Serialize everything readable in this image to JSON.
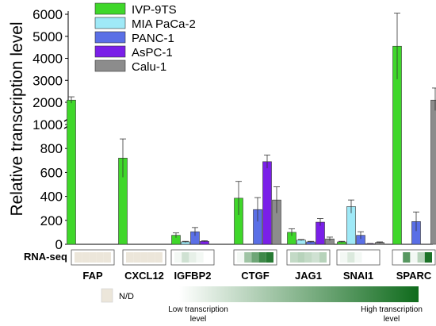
{
  "chart_data": {
    "type": "bar",
    "ylabel": "Relative transcription level",
    "axis_break": {
      "lower": [
        0,
        1000
      ],
      "upper": [
        1000,
        6000
      ]
    },
    "lower_ticks": [
      0,
      200,
      400,
      600,
      800,
      1000
    ],
    "upper_ticks": [
      2000,
      3000,
      4000,
      5000,
      6000
    ],
    "categories": [
      "FAP",
      "CXCL12",
      "IGFBP2",
      "CTGF",
      "JAG1",
      "SNAI1",
      "SPARC"
    ],
    "series": [
      {
        "name": "IVP-9TS",
        "color": "#3fd72a",
        "values": [
          2100,
          720,
          75,
          385,
          100,
          20,
          4550
        ],
        "errors": [
          150,
          160,
          20,
          140,
          30,
          5,
          1500
        ]
      },
      {
        "name": "MIA PaCa-2",
        "color": "#9fe9f7",
        "values": [
          0,
          0,
          20,
          0,
          35,
          315,
          0
        ],
        "errors": [
          0,
          0,
          5,
          0,
          5,
          55,
          0
        ]
      },
      {
        "name": "PANC-1",
        "color": "#5a6fe6",
        "values": [
          0,
          0,
          105,
          290,
          20,
          75,
          190
        ],
        "errors": [
          0,
          0,
          35,
          100,
          5,
          30,
          80
        ]
      },
      {
        "name": "AsPC-1",
        "color": "#7a1fe8",
        "values": [
          0,
          0,
          25,
          690,
          185,
          5,
          0
        ],
        "errors": [
          0,
          0,
          5,
          55,
          30,
          2,
          0
        ]
      },
      {
        "name": "Calu-1",
        "color": "#8c8c8c",
        "values": [
          0,
          0,
          0,
          370,
          45,
          15,
          2100
        ],
        "errors": [
          0,
          0,
          0,
          110,
          15,
          5,
          550
        ]
      }
    ],
    "rnaseq": {
      "label": "RNA-seq",
      "rows": [
        {
          "gene": "FAP",
          "levels": [
            -1,
            -1,
            -1,
            -1,
            -1
          ]
        },
        {
          "gene": "CXCL12",
          "levels": [
            -1,
            -1,
            -1,
            -1,
            -1
          ]
        },
        {
          "gene": "IGFBP2",
          "levels": [
            0.05,
            0.2,
            0.1,
            0.05,
            0.0
          ]
        },
        {
          "gene": "CTGF",
          "levels": [
            0.05,
            0.4,
            0.6,
            0.8,
            0.9
          ]
        },
        {
          "gene": "JAG1",
          "levels": [
            0.25,
            0.3,
            0.25,
            0.2,
            0.3
          ]
        },
        {
          "gene": "SNAI1",
          "levels": [
            0.05,
            0.15,
            0.05,
            0.0,
            0.0
          ]
        },
        {
          "gene": "SPARC",
          "levels": [
            0.0,
            0.7,
            0.05,
            0.3,
            0.95
          ]
        }
      ]
    },
    "key": {
      "nd_label": "N/D",
      "low_label": "Low transcription\nlevel",
      "high_label": "High transcription\nlevel",
      "nd_color": "#ece6da",
      "low_color": "#ffffff",
      "high_color": "#0f6b1c"
    }
  }
}
